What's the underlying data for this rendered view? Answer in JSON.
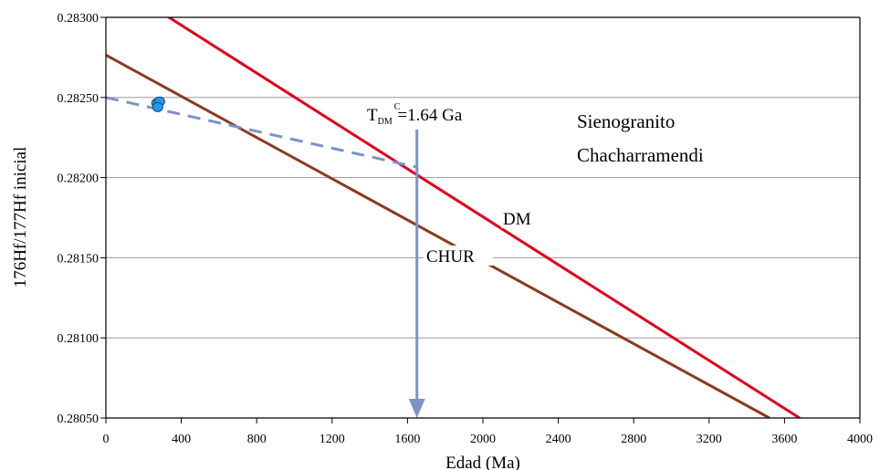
{
  "chart_data": {
    "type": "line",
    "xlabel": "Edad (Ma)",
    "ylabel": "176Hf/177Hf inicial",
    "xlim": [
      0,
      4000
    ],
    "ylim": [
      0.2805,
      0.283
    ],
    "x_ticks": [
      "0",
      "400",
      "800",
      "1200",
      "1600",
      "2000",
      "2400",
      "2800",
      "3200",
      "3600",
      "4000"
    ],
    "y_ticks": [
      "0.28050",
      "0.28100",
      "0.28150",
      "0.28200",
      "0.28250",
      "0.28300"
    ],
    "grid": true,
    "colors": {
      "dm": "#e2001a",
      "chur": "#8b3a1f",
      "evolution": "#7b93c9",
      "points": "#1e9ce6",
      "arrow": "#7b93c9",
      "grid": "#9a9a9a"
    },
    "series": [
      {
        "name": "DM",
        "style": "solid",
        "x": [
          0,
          3680
        ],
        "y": [
          0.28325,
          0.2805
        ]
      },
      {
        "name": "CHUR",
        "style": "solid",
        "x": [
          0,
          3520
        ],
        "y": [
          0.282765,
          0.2805
        ]
      },
      {
        "style": "dashed",
        "x": [
          0,
          1650
        ],
        "y": [
          0.2825,
          0.282065
        ]
      },
      {
        "style": "points",
        "x": [
          270,
          285,
          275
        ],
        "y": [
          0.282465,
          0.282475,
          0.28244
        ]
      }
    ],
    "annotations": {
      "tdm_main": "T",
      "tdm_sub": "DM",
      "tdm_sup": "C",
      "tdm_value": "=1.64 Ga",
      "tdm_x": 1650,
      "sample_line1": "Sienogranito",
      "sample_line2": "Chacharramendi",
      "dm_label": "DM",
      "chur_label": "CHUR"
    }
  }
}
